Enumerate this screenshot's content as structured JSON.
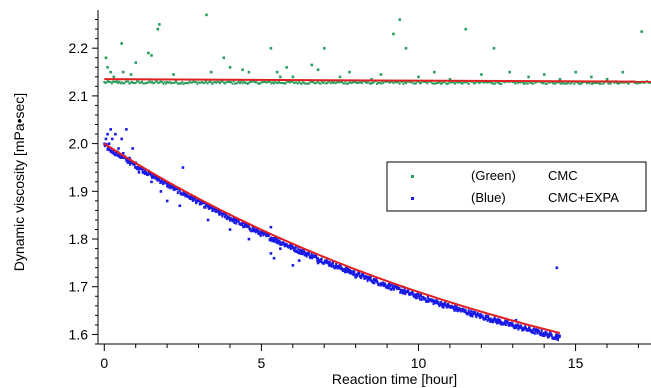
{
  "chart_data": {
    "type": "scatter",
    "title": "",
    "xlabel": "Reaction time [hour]",
    "ylabel": "Dynamic viscosity [mPa•sec]",
    "xlim": [
      -0.2,
      17.4
    ],
    "ylim": [
      1.58,
      2.28
    ],
    "xticks": [
      0,
      5,
      10,
      15
    ],
    "yticks": [
      1.6,
      1.7,
      1.8,
      1.9,
      2.0,
      2.1,
      2.2
    ],
    "grid": false,
    "legend": {
      "placement": "right",
      "entries": [
        {
          "tag": "(Green)",
          "label": "CMC",
          "color": "#2a9d5c"
        },
        {
          "tag": "(Blue)",
          "label": "CMC+EXPA",
          "color": "#1a1ae6"
        }
      ]
    },
    "series": [
      {
        "label": "CMC",
        "color": "#2a9d5c",
        "baseline": 2.128,
        "x_range": [
          0,
          17.4
        ],
        "outliers": [
          [
            0.05,
            2.18
          ],
          [
            0.1,
            2.16
          ],
          [
            0.2,
            2.15
          ],
          [
            0.3,
            2.14
          ],
          [
            0.4,
            2.13
          ],
          [
            0.55,
            2.21
          ],
          [
            0.6,
            2.15
          ],
          [
            0.85,
            2.145
          ],
          [
            1.0,
            2.17
          ],
          [
            1.4,
            2.19
          ],
          [
            1.5,
            2.185
          ],
          [
            1.7,
            2.24
          ],
          [
            1.75,
            2.25
          ],
          [
            2.2,
            2.145
          ],
          [
            3.25,
            2.27
          ],
          [
            3.4,
            2.15
          ],
          [
            3.8,
            2.18
          ],
          [
            4.0,
            2.16
          ],
          [
            4.4,
            2.155
          ],
          [
            4.6,
            2.15
          ],
          [
            5.3,
            2.2
          ],
          [
            5.5,
            2.15
          ],
          [
            5.6,
            2.14
          ],
          [
            5.8,
            2.16
          ],
          [
            6.0,
            2.14
          ],
          [
            6.6,
            2.165
          ],
          [
            6.8,
            2.155
          ],
          [
            7.0,
            2.2
          ],
          [
            7.5,
            2.14
          ],
          [
            7.8,
            2.15
          ],
          [
            8.5,
            2.135
          ],
          [
            8.8,
            2.145
          ],
          [
            9.2,
            2.23
          ],
          [
            9.4,
            2.26
          ],
          [
            9.6,
            2.2
          ],
          [
            10.0,
            2.14
          ],
          [
            10.5,
            2.15
          ],
          [
            11.0,
            2.135
          ],
          [
            11.5,
            2.24
          ],
          [
            12.0,
            2.145
          ],
          [
            12.4,
            2.2
          ],
          [
            12.9,
            2.15
          ],
          [
            13.5,
            2.14
          ],
          [
            14.0,
            2.145
          ],
          [
            14.5,
            2.135
          ],
          [
            15.0,
            2.15
          ],
          [
            15.5,
            2.14
          ],
          [
            16.0,
            2.135
          ],
          [
            16.5,
            2.15
          ],
          [
            17.1,
            2.235
          ]
        ]
      },
      {
        "label": "CMC+EXPA",
        "color": "#1a1ae6",
        "x_range": [
          0,
          14.5
        ],
        "y_start": 2.0,
        "y_end": 1.597,
        "outliers": [
          [
            0.05,
            2.01
          ],
          [
            0.1,
            2.02
          ],
          [
            0.15,
            2.0
          ],
          [
            0.2,
            2.03
          ],
          [
            0.25,
            2.01
          ],
          [
            0.35,
            2.02
          ],
          [
            0.45,
            1.99
          ],
          [
            0.55,
            2.01
          ],
          [
            0.6,
            1.98
          ],
          [
            0.7,
            2.03
          ],
          [
            0.8,
            1.97
          ],
          [
            0.9,
            1.99
          ],
          [
            1.0,
            1.96
          ],
          [
            1.1,
            1.94
          ],
          [
            1.2,
            1.95
          ],
          [
            1.5,
            1.92
          ],
          [
            1.8,
            1.9
          ],
          [
            2.0,
            1.88
          ],
          [
            2.4,
            1.87
          ],
          [
            2.5,
            1.95
          ],
          [
            3.3,
            1.84
          ],
          [
            4.0,
            1.82
          ],
          [
            4.6,
            1.8
          ],
          [
            5.3,
            1.77
          ],
          [
            5.4,
            1.76
          ],
          [
            5.5,
            1.8
          ],
          [
            5.3,
            1.825
          ],
          [
            5.6,
            1.78
          ],
          [
            6.0,
            1.745
          ],
          [
            6.2,
            1.755
          ],
          [
            6.8,
            1.75
          ],
          [
            8.0,
            1.72
          ],
          [
            9.5,
            1.7
          ],
          [
            13.1,
            1.63
          ],
          [
            14.4,
            1.74
          ],
          [
            14.4,
            1.6
          ]
        ]
      }
    ],
    "fits": [
      {
        "label": "CMC fit",
        "color": "#e02020",
        "type": "constant",
        "y": 2.135,
        "slope": -0.0003,
        "x_range": [
          0,
          17.4
        ]
      },
      {
        "label": "CMC+EXPA fit",
        "color": "#e02020",
        "type": "exponential",
        "x_range": [
          0,
          14.5
        ],
        "y_start": 2.0,
        "y_end": 1.603
      }
    ]
  }
}
